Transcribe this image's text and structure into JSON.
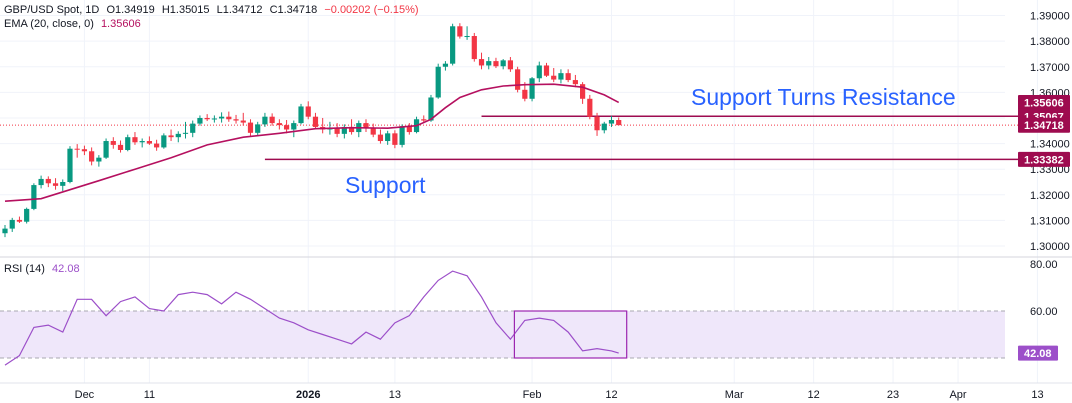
{
  "header": {
    "symbol": "GBP/USD Spot, 1D",
    "open": "O1.34919",
    "high": "H1.35015",
    "low": "L1.34712",
    "close": "C1.34718",
    "change": "−0.00202 (−0.15%)"
  },
  "ema_legend": {
    "label": "EMA (20, close, 0)",
    "value": "1.35606"
  },
  "rsi_legend": {
    "label": "RSI (14)",
    "value": "42.08"
  },
  "annotations": {
    "resistance_text": "Support Turns Resistance",
    "support_text": "Support"
  },
  "colors": {
    "up": "#089981",
    "down": "#f23645",
    "ema": "#b5105f",
    "rsi": "#9c4fc9",
    "rsi_band": "#efe7fa",
    "line": "#9e0b4f",
    "annotation_text": "#2962ff",
    "grid": "#f0f3fa"
  },
  "chart_data": [
    {
      "type": "candlestick",
      "title": "GBP/USD Spot, 1D",
      "y_ticks": [
        "1.39000",
        "1.38000",
        "1.37000",
        "1.36000",
        "1.35000",
        "1.34000",
        "1.33000",
        "1.32000",
        "1.31000",
        "1.30000"
      ],
      "ylim": [
        1.2965,
        1.3945
      ],
      "x_ticks": [
        {
          "label": "Dec",
          "day": 11
        },
        {
          "label": "11",
          "day": 20
        },
        {
          "label": "2026",
          "day": 42
        },
        {
          "label": "13",
          "day": 54
        },
        {
          "label": "Feb",
          "day": 73
        },
        {
          "label": "12",
          "day": 84
        },
        {
          "label": "Mar",
          "day": 101
        },
        {
          "label": "12",
          "day": 112
        },
        {
          "label": "23",
          "day": 123
        },
        {
          "label": "Apr",
          "day": 132
        },
        {
          "label": "13",
          "day": 143
        }
      ],
      "price_labels": [
        {
          "text": "1.35606",
          "value": 1.35606
        },
        {
          "text": "1.35067",
          "value": 1.35067
        },
        {
          "text": "1.34718",
          "value": 1.34718
        },
        {
          "text": "1.33382",
          "value": 1.33382
        }
      ],
      "horizontal_lines": [
        {
          "name": "resistance",
          "value": 1.35067,
          "from_day": 66
        },
        {
          "name": "support",
          "value": 1.33382,
          "from_day": 36
        }
      ],
      "candles": [
        {
          "day": 0,
          "o": 1.305,
          "h": 1.3082,
          "l": 1.3035,
          "c": 1.3068
        },
        {
          "day": 1,
          "o": 1.3068,
          "h": 1.311,
          "l": 1.3055,
          "c": 1.3102
        },
        {
          "day": 2,
          "o": 1.3102,
          "h": 1.3115,
          "l": 1.309,
          "c": 1.3095
        },
        {
          "day": 3,
          "o": 1.3095,
          "h": 1.315,
          "l": 1.3088,
          "c": 1.3145
        },
        {
          "day": 4,
          "o": 1.3145,
          "h": 1.3245,
          "l": 1.314,
          "c": 1.3238
        },
        {
          "day": 5,
          "o": 1.3238,
          "h": 1.3275,
          "l": 1.3225,
          "c": 1.3262
        },
        {
          "day": 6,
          "o": 1.3262,
          "h": 1.3272,
          "l": 1.323,
          "c": 1.3245
        },
        {
          "day": 7,
          "o": 1.3245,
          "h": 1.3265,
          "l": 1.322,
          "c": 1.3235
        },
        {
          "day": 8,
          "o": 1.3235,
          "h": 1.326,
          "l": 1.3215,
          "c": 1.325
        },
        {
          "day": 9,
          "o": 1.325,
          "h": 1.339,
          "l": 1.3245,
          "c": 1.338
        },
        {
          "day": 10,
          "o": 1.338,
          "h": 1.3398,
          "l": 1.3345,
          "c": 1.3378
        },
        {
          "day": 11,
          "o": 1.3378,
          "h": 1.3392,
          "l": 1.3355,
          "c": 1.337
        },
        {
          "day": 12,
          "o": 1.337,
          "h": 1.3385,
          "l": 1.3315,
          "c": 1.333
        },
        {
          "day": 13,
          "o": 1.333,
          "h": 1.3355,
          "l": 1.331,
          "c": 1.3345
        },
        {
          "day": 14,
          "o": 1.3345,
          "h": 1.342,
          "l": 1.334,
          "c": 1.341
        },
        {
          "day": 15,
          "o": 1.341,
          "h": 1.3425,
          "l": 1.338,
          "c": 1.3395
        },
        {
          "day": 16,
          "o": 1.3395,
          "h": 1.3412,
          "l": 1.3365,
          "c": 1.3375
        },
        {
          "day": 17,
          "o": 1.3375,
          "h": 1.3435,
          "l": 1.337,
          "c": 1.3425
        },
        {
          "day": 18,
          "o": 1.3425,
          "h": 1.3445,
          "l": 1.3395,
          "c": 1.3405
        },
        {
          "day": 19,
          "o": 1.3405,
          "h": 1.342,
          "l": 1.3385,
          "c": 1.341
        },
        {
          "day": 20,
          "o": 1.341,
          "h": 1.3428,
          "l": 1.3395,
          "c": 1.34
        },
        {
          "day": 21,
          "o": 1.34,
          "h": 1.3415,
          "l": 1.3372,
          "c": 1.3385
        },
        {
          "day": 22,
          "o": 1.3385,
          "h": 1.344,
          "l": 1.338,
          "c": 1.3432
        },
        {
          "day": 23,
          "o": 1.3432,
          "h": 1.3455,
          "l": 1.341,
          "c": 1.3425
        },
        {
          "day": 24,
          "o": 1.3425,
          "h": 1.3448,
          "l": 1.3405,
          "c": 1.3438
        },
        {
          "day": 25,
          "o": 1.3438,
          "h": 1.3485,
          "l": 1.342,
          "c": 1.3442
        },
        {
          "day": 26,
          "o": 1.3442,
          "h": 1.349,
          "l": 1.3425,
          "c": 1.3478
        },
        {
          "day": 27,
          "o": 1.3478,
          "h": 1.351,
          "l": 1.347,
          "c": 1.35
        },
        {
          "day": 28,
          "o": 1.35,
          "h": 1.3515,
          "l": 1.3488,
          "c": 1.3495
        },
        {
          "day": 29,
          "o": 1.3495,
          "h": 1.351,
          "l": 1.3482,
          "c": 1.3498
        },
        {
          "day": 30,
          "o": 1.3498,
          "h": 1.3522,
          "l": 1.3482,
          "c": 1.3505
        },
        {
          "day": 31,
          "o": 1.3505,
          "h": 1.3525,
          "l": 1.3485,
          "c": 1.3495
        },
        {
          "day": 32,
          "o": 1.3495,
          "h": 1.3512,
          "l": 1.3478,
          "c": 1.349
        },
        {
          "day": 33,
          "o": 1.349,
          "h": 1.352,
          "l": 1.347,
          "c": 1.3482
        },
        {
          "day": 34,
          "o": 1.3482,
          "h": 1.3495,
          "l": 1.343,
          "c": 1.3442
        },
        {
          "day": 35,
          "o": 1.3442,
          "h": 1.3485,
          "l": 1.3428,
          "c": 1.3475
        },
        {
          "day": 36,
          "o": 1.3475,
          "h": 1.352,
          "l": 1.3465,
          "c": 1.3505
        },
        {
          "day": 37,
          "o": 1.3505,
          "h": 1.3518,
          "l": 1.347,
          "c": 1.348
        },
        {
          "day": 38,
          "o": 1.348,
          "h": 1.3495,
          "l": 1.3455,
          "c": 1.3472
        },
        {
          "day": 39,
          "o": 1.3472,
          "h": 1.3492,
          "l": 1.344,
          "c": 1.3455
        },
        {
          "day": 40,
          "o": 1.3455,
          "h": 1.349,
          "l": 1.3425,
          "c": 1.348
        },
        {
          "day": 41,
          "o": 1.348,
          "h": 1.3555,
          "l": 1.3475,
          "c": 1.3545
        },
        {
          "day": 42,
          "o": 1.3545,
          "h": 1.3565,
          "l": 1.3495,
          "c": 1.3505
        },
        {
          "day": 43,
          "o": 1.3505,
          "h": 1.352,
          "l": 1.3455,
          "c": 1.3465
        },
        {
          "day": 44,
          "o": 1.3465,
          "h": 1.35,
          "l": 1.344,
          "c": 1.3455
        },
        {
          "day": 45,
          "o": 1.3455,
          "h": 1.3485,
          "l": 1.3435,
          "c": 1.3462
        },
        {
          "day": 46,
          "o": 1.3462,
          "h": 1.348,
          "l": 1.3425,
          "c": 1.3438
        },
        {
          "day": 47,
          "o": 1.3438,
          "h": 1.3475,
          "l": 1.342,
          "c": 1.3465
        },
        {
          "day": 48,
          "o": 1.3465,
          "h": 1.3495,
          "l": 1.3435,
          "c": 1.3445
        },
        {
          "day": 49,
          "o": 1.3445,
          "h": 1.349,
          "l": 1.3425,
          "c": 1.348
        },
        {
          "day": 50,
          "o": 1.348,
          "h": 1.3495,
          "l": 1.3445,
          "c": 1.346
        },
        {
          "day": 51,
          "o": 1.346,
          "h": 1.3478,
          "l": 1.3425,
          "c": 1.3435
        },
        {
          "day": 52,
          "o": 1.3435,
          "h": 1.3455,
          "l": 1.34,
          "c": 1.341
        },
        {
          "day": 53,
          "o": 1.341,
          "h": 1.345,
          "l": 1.3395,
          "c": 1.344
        },
        {
          "day": 54,
          "o": 1.344,
          "h": 1.3452,
          "l": 1.3382,
          "c": 1.3395
        },
        {
          "day": 55,
          "o": 1.3395,
          "h": 1.3475,
          "l": 1.3385,
          "c": 1.3468
        },
        {
          "day": 56,
          "o": 1.3468,
          "h": 1.348,
          "l": 1.3435,
          "c": 1.3445
        },
        {
          "day": 57,
          "o": 1.3445,
          "h": 1.3505,
          "l": 1.344,
          "c": 1.3495
        },
        {
          "day": 58,
          "o": 1.3495,
          "h": 1.351,
          "l": 1.348,
          "c": 1.349
        },
        {
          "day": 59,
          "o": 1.349,
          "h": 1.359,
          "l": 1.3485,
          "c": 1.358
        },
        {
          "day": 60,
          "o": 1.358,
          "h": 1.3712,
          "l": 1.3575,
          "c": 1.37
        },
        {
          "day": 61,
          "o": 1.37,
          "h": 1.3722,
          "l": 1.3685,
          "c": 1.3712
        },
        {
          "day": 62,
          "o": 1.3712,
          "h": 1.3868,
          "l": 1.3705,
          "c": 1.3858
        },
        {
          "day": 63,
          "o": 1.3858,
          "h": 1.387,
          "l": 1.381,
          "c": 1.3818
        },
        {
          "day": 64,
          "o": 1.3818,
          "h": 1.3858,
          "l": 1.3805,
          "c": 1.382
        },
        {
          "day": 65,
          "o": 1.382,
          "h": 1.3832,
          "l": 1.372,
          "c": 1.373
        },
        {
          "day": 66,
          "o": 1.373,
          "h": 1.3755,
          "l": 1.369,
          "c": 1.3705
        },
        {
          "day": 67,
          "o": 1.3705,
          "h": 1.3738,
          "l": 1.369,
          "c": 1.3722
        },
        {
          "day": 68,
          "o": 1.3722,
          "h": 1.3735,
          "l": 1.3695,
          "c": 1.3702
        },
        {
          "day": 69,
          "o": 1.3702,
          "h": 1.373,
          "l": 1.369,
          "c": 1.3725
        },
        {
          "day": 70,
          "o": 1.3725,
          "h": 1.3738,
          "l": 1.368,
          "c": 1.369
        },
        {
          "day": 71,
          "o": 1.369,
          "h": 1.37,
          "l": 1.36,
          "c": 1.361
        },
        {
          "day": 72,
          "o": 1.361,
          "h": 1.364,
          "l": 1.3565,
          "c": 1.3575
        },
        {
          "day": 73,
          "o": 1.3575,
          "h": 1.366,
          "l": 1.3565,
          "c": 1.3655
        },
        {
          "day": 74,
          "o": 1.3655,
          "h": 1.372,
          "l": 1.364,
          "c": 1.3705
        },
        {
          "day": 75,
          "o": 1.3705,
          "h": 1.3715,
          "l": 1.366,
          "c": 1.3665
        },
        {
          "day": 76,
          "o": 1.3665,
          "h": 1.3695,
          "l": 1.364,
          "c": 1.365
        },
        {
          "day": 77,
          "o": 1.365,
          "h": 1.369,
          "l": 1.3635,
          "c": 1.3675
        },
        {
          "day": 78,
          "o": 1.3675,
          "h": 1.369,
          "l": 1.364,
          "c": 1.3648
        },
        {
          "day": 79,
          "o": 1.3648,
          "h": 1.3668,
          "l": 1.362,
          "c": 1.3632
        },
        {
          "day": 80,
          "o": 1.3632,
          "h": 1.364,
          "l": 1.3555,
          "c": 1.3575
        },
        {
          "day": 81,
          "o": 1.3575,
          "h": 1.359,
          "l": 1.3495,
          "c": 1.3505
        },
        {
          "day": 82,
          "o": 1.3505,
          "h": 1.352,
          "l": 1.343,
          "c": 1.3452
        },
        {
          "day": 83,
          "o": 1.3452,
          "h": 1.3485,
          "l": 1.344,
          "c": 1.3478
        },
        {
          "day": 84,
          "o": 1.3478,
          "h": 1.3508,
          "l": 1.3465,
          "c": 1.3492
        },
        {
          "day": 85,
          "o": 1.3492,
          "h": 1.3502,
          "l": 1.3471,
          "c": 1.3472
        }
      ],
      "ema": [
        {
          "day": 0,
          "v": 1.3175
        },
        {
          "day": 5,
          "v": 1.3185
        },
        {
          "day": 9,
          "v": 1.322
        },
        {
          "day": 13,
          "v": 1.3255
        },
        {
          "day": 18,
          "v": 1.33
        },
        {
          "day": 23,
          "v": 1.3345
        },
        {
          "day": 28,
          "v": 1.3395
        },
        {
          "day": 33,
          "v": 1.3425
        },
        {
          "day": 38,
          "v": 1.344
        },
        {
          "day": 43,
          "v": 1.3458
        },
        {
          "day": 48,
          "v": 1.3462
        },
        {
          "day": 53,
          "v": 1.346
        },
        {
          "day": 57,
          "v": 1.347
        },
        {
          "day": 59,
          "v": 1.3495
        },
        {
          "day": 61,
          "v": 1.354
        },
        {
          "day": 63,
          "v": 1.358
        },
        {
          "day": 66,
          "v": 1.361
        },
        {
          "day": 69,
          "v": 1.3625
        },
        {
          "day": 72,
          "v": 1.363
        },
        {
          "day": 76,
          "v": 1.3632
        },
        {
          "day": 80,
          "v": 1.362
        },
        {
          "day": 83,
          "v": 1.359
        },
        {
          "day": 85,
          "v": 1.3561
        }
      ]
    },
    {
      "type": "line",
      "title": "RSI (14)",
      "y_ticks": [
        "80.00",
        "60.00"
      ],
      "ylim": [
        34,
        82
      ],
      "band": [
        40,
        60
      ],
      "last_value_label": "42.08",
      "last_value": 42.08,
      "highlight_box": {
        "from_day": 70,
        "to_day": 85,
        "y_from": 40,
        "y_to": 60
      },
      "x": [
        0,
        2,
        4,
        6,
        8,
        10,
        12,
        14,
        16,
        18,
        20,
        22,
        24,
        26,
        28,
        30,
        32,
        34,
        36,
        38,
        40,
        42,
        44,
        46,
        48,
        50,
        52,
        54,
        56,
        58,
        60,
        62,
        64,
        66,
        68,
        70,
        72,
        74,
        76,
        78,
        80,
        82,
        84,
        85
      ],
      "values": [
        37,
        41,
        53,
        54,
        51,
        65,
        65,
        58,
        64,
        66,
        61,
        60,
        67,
        68,
        67,
        63,
        68,
        65,
        61,
        57,
        55,
        52,
        50,
        48,
        46,
        51,
        48,
        55,
        58,
        66,
        73,
        77,
        75,
        66,
        55,
        48,
        56,
        57,
        56,
        51,
        43,
        44,
        43,
        42.08
      ]
    }
  ]
}
